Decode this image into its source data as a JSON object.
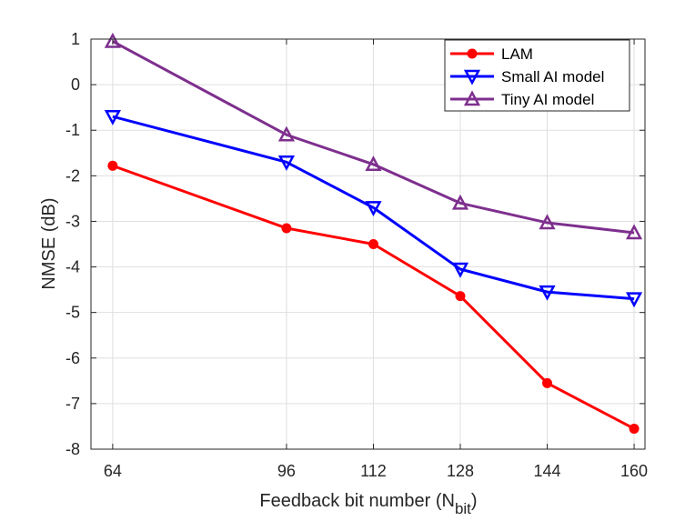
{
  "chart_data": {
    "type": "line",
    "title": "",
    "xlabel": "Feedback bit number (N",
    "xlabel_subscript": "bit",
    "xlabel_close": ")",
    "ylabel": "NMSE (dB)",
    "x": [
      64,
      96,
      112,
      128,
      144,
      160
    ],
    "xlim": [
      60,
      162
    ],
    "ylim": [
      -8,
      1
    ],
    "xticks": [
      64,
      96,
      112,
      128,
      144,
      160
    ],
    "yticks": [
      1,
      0,
      -1,
      -2,
      -3,
      -4,
      -5,
      -6,
      -7,
      -8
    ],
    "grid": true,
    "legend_position": "top-right",
    "series": [
      {
        "name": "LAM",
        "color": "#ff0000",
        "marker": "circle",
        "values": [
          -1.78,
          -3.15,
          -3.5,
          -4.64,
          -6.55,
          -7.55
        ]
      },
      {
        "name": "Small AI model",
        "color": "#0000ff",
        "marker": "triangle-down",
        "values": [
          -0.7,
          -1.7,
          -2.7,
          -4.05,
          -4.55,
          -4.7
        ]
      },
      {
        "name": "Tiny AI model",
        "color": "#7e2f8e",
        "marker": "triangle-up",
        "values": [
          0.95,
          -1.1,
          -1.75,
          -2.6,
          -3.03,
          -3.25
        ]
      }
    ]
  }
}
